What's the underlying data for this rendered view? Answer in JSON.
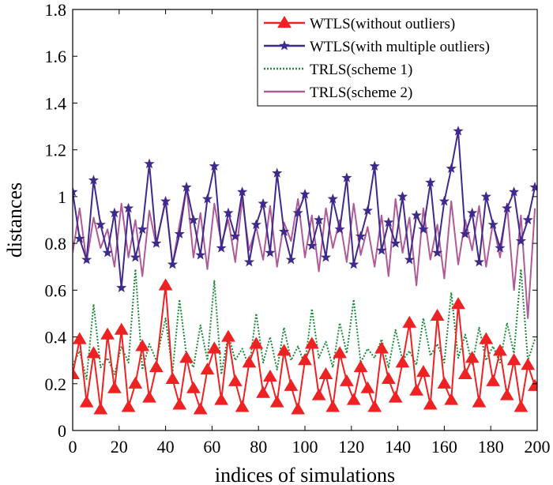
{
  "chart_data": {
    "type": "line",
    "title": "",
    "xlabel": "indices of simulations",
    "ylabel": "distances",
    "xlim": [
      0,
      200
    ],
    "ylim": [
      0,
      1.8
    ],
    "xticks": [
      0,
      20,
      40,
      60,
      80,
      100,
      120,
      140,
      160,
      180,
      200
    ],
    "yticks": [
      0,
      0.2,
      0.4,
      0.6,
      0.8,
      1,
      1.2,
      1.4,
      1.6,
      1.8
    ],
    "xtick_labels": [
      "0",
      "20",
      "40",
      "60",
      "80",
      "100",
      "120",
      "140",
      "160",
      "180",
      "200"
    ],
    "ytick_labels": [
      "0",
      "0.2",
      "0.4",
      "0.6",
      "0.8",
      "1",
      "1.2",
      "1.4",
      "1.6",
      "1.8"
    ],
    "grid": false,
    "legend_position": "top-right",
    "series": [
      {
        "name": "WTLS(without outliers)",
        "color": "#ee2222",
        "style": "solid-triangle",
        "x": [
          0,
          3,
          6,
          9,
          12,
          15,
          18,
          21,
          24,
          27,
          30,
          33,
          36,
          40,
          43,
          46,
          49,
          52,
          55,
          58,
          61,
          64,
          67,
          70,
          73,
          76,
          79,
          82,
          85,
          88,
          91,
          94,
          97,
          100,
          103,
          106,
          109,
          112,
          115,
          118,
          121,
          124,
          127,
          130,
          133,
          136,
          139,
          142,
          145,
          148,
          151,
          154,
          157,
          160,
          163,
          166,
          169,
          172,
          175,
          178,
          181,
          184,
          187,
          190,
          193,
          196,
          199
        ],
        "values": [
          0.24,
          0.39,
          0.12,
          0.33,
          0.09,
          0.41,
          0.18,
          0.43,
          0.1,
          0.2,
          0.36,
          0.14,
          0.27,
          0.62,
          0.22,
          0.11,
          0.31,
          0.18,
          0.09,
          0.26,
          0.35,
          0.13,
          0.4,
          0.21,
          0.1,
          0.29,
          0.37,
          0.16,
          0.23,
          0.12,
          0.34,
          0.19,
          0.09,
          0.3,
          0.37,
          0.15,
          0.24,
          0.1,
          0.33,
          0.21,
          0.13,
          0.27,
          0.18,
          0.1,
          0.35,
          0.22,
          0.14,
          0.29,
          0.46,
          0.17,
          0.25,
          0.11,
          0.49,
          0.2,
          0.13,
          0.54,
          0.24,
          0.31,
          0.12,
          0.39,
          0.21,
          0.34,
          0.15,
          0.3,
          0.1,
          0.28,
          0.19
        ]
      },
      {
        "name": "WTLS(with multiple outliers)",
        "color": "#3f2a8c",
        "style": "solid-star",
        "x": [
          0,
          3,
          6,
          9,
          12,
          15,
          18,
          21,
          24,
          27,
          30,
          33,
          36,
          40,
          43,
          46,
          49,
          52,
          55,
          58,
          61,
          64,
          67,
          70,
          73,
          76,
          79,
          82,
          85,
          88,
          91,
          94,
          97,
          100,
          103,
          106,
          109,
          112,
          115,
          118,
          121,
          124,
          127,
          130,
          133,
          136,
          139,
          142,
          145,
          148,
          151,
          154,
          157,
          160,
          163,
          166,
          169,
          172,
          175,
          178,
          181,
          184,
          187,
          190,
          193,
          196,
          199
        ],
        "values": [
          1.02,
          0.82,
          0.73,
          1.07,
          0.88,
          0.76,
          0.93,
          0.61,
          0.95,
          0.74,
          0.86,
          1.14,
          0.8,
          0.98,
          0.71,
          0.84,
          1.04,
          0.9,
          0.75,
          0.99,
          1.13,
          0.78,
          0.93,
          0.83,
          1.02,
          0.72,
          0.88,
          0.97,
          0.76,
          1.1,
          0.85,
          0.73,
          0.93,
          1.01,
          0.79,
          0.9,
          0.74,
          0.99,
          0.86,
          1.08,
          0.71,
          0.83,
          0.94,
          1.13,
          0.77,
          0.89,
          0.8,
          1.0,
          0.73,
          0.92,
          0.86,
          1.06,
          0.76,
          0.98,
          1.12,
          1.28,
          0.84,
          0.93,
          0.72,
          1.0,
          0.88,
          0.78,
          0.95,
          1.02,
          0.81,
          0.9,
          1.04
        ]
      },
      {
        "name": "TRLS(scheme 1)",
        "color": "#1f8a3a",
        "style": "dotted",
        "x": [
          0,
          3,
          6,
          9,
          12,
          15,
          18,
          21,
          24,
          27,
          30,
          33,
          36,
          40,
          43,
          46,
          49,
          52,
          55,
          58,
          61,
          64,
          67,
          70,
          73,
          76,
          79,
          82,
          85,
          88,
          91,
          94,
          97,
          100,
          103,
          106,
          109,
          112,
          115,
          118,
          121,
          124,
          127,
          130,
          133,
          136,
          139,
          142,
          145,
          148,
          151,
          154,
          157,
          160,
          163,
          166,
          169,
          172,
          175,
          178,
          181,
          184,
          187,
          190,
          193,
          196,
          199
        ],
        "values": [
          0.28,
          0.34,
          0.22,
          0.54,
          0.27,
          0.31,
          0.24,
          0.36,
          0.29,
          0.69,
          0.26,
          0.37,
          0.3,
          0.48,
          0.25,
          0.56,
          0.32,
          0.27,
          0.45,
          0.3,
          0.64,
          0.24,
          0.41,
          0.3,
          0.35,
          0.27,
          0.5,
          0.29,
          0.4,
          0.26,
          0.44,
          0.3,
          0.36,
          0.28,
          0.52,
          0.31,
          0.38,
          0.27,
          0.46,
          0.33,
          0.56,
          0.29,
          0.35,
          0.31,
          0.39,
          0.27,
          0.43,
          0.3,
          0.34,
          0.28,
          0.48,
          0.32,
          0.37,
          0.29,
          0.59,
          0.31,
          0.41,
          0.28,
          0.44,
          0.3,
          0.36,
          0.29,
          0.46,
          0.33,
          0.69,
          0.3,
          0.39
        ]
      },
      {
        "name": "TRLS(scheme 2)",
        "color": "#b05a96",
        "style": "solid",
        "x": [
          0,
          3,
          6,
          9,
          12,
          15,
          18,
          21,
          24,
          27,
          30,
          33,
          36,
          40,
          43,
          46,
          49,
          52,
          55,
          58,
          61,
          64,
          67,
          70,
          73,
          76,
          79,
          82,
          85,
          88,
          91,
          94,
          97,
          100,
          103,
          106,
          109,
          112,
          115,
          118,
          121,
          124,
          127,
          130,
          133,
          136,
          139,
          142,
          145,
          148,
          151,
          154,
          157,
          160,
          163,
          166,
          169,
          172,
          175,
          178,
          181,
          184,
          187,
          190,
          193,
          196,
          199
        ],
        "values": [
          0.76,
          0.95,
          0.72,
          0.91,
          0.78,
          0.86,
          0.7,
          0.97,
          0.74,
          0.9,
          0.66,
          0.94,
          0.79,
          0.99,
          0.71,
          0.88,
          1.04,
          0.74,
          0.93,
          0.69,
          0.97,
          0.8,
          0.9,
          0.72,
          0.99,
          0.77,
          0.87,
          0.73,
          0.96,
          0.7,
          0.89,
          0.81,
          0.99,
          0.74,
          0.92,
          0.68,
          0.95,
          0.78,
          0.9,
          0.72,
          0.97,
          0.75,
          0.87,
          0.7,
          0.92,
          0.66,
          0.99,
          0.76,
          0.91,
          0.62,
          0.95,
          0.73,
          0.88,
          0.65,
          0.98,
          0.71,
          0.9,
          0.77,
          0.96,
          0.7,
          0.89,
          0.74,
          0.97,
          0.6,
          0.92,
          0.48,
          0.95
        ]
      }
    ]
  }
}
